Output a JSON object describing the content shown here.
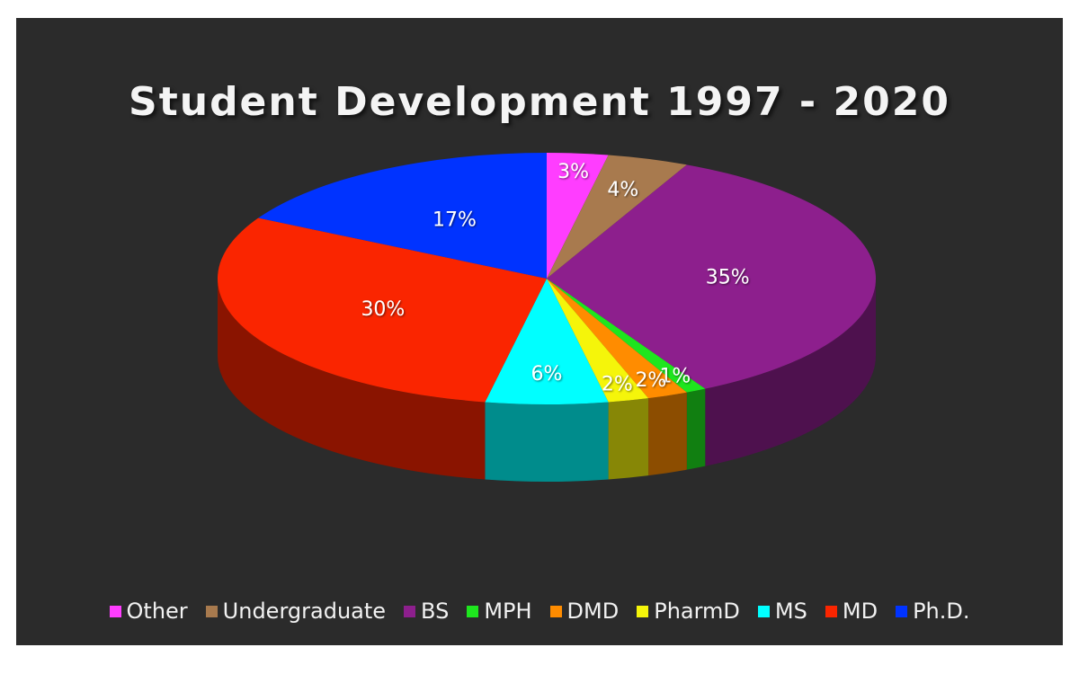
{
  "chart_data": {
    "type": "pie",
    "title": "Student Development 1997 - 2020",
    "legend_position": "bottom",
    "slices": [
      {
        "name": "Other",
        "value": 3,
        "label": "3%",
        "color": "#ff3dff"
      },
      {
        "name": "Undergraduate",
        "value": 4,
        "label": "4%",
        "color": "#a87a4e"
      },
      {
        "name": "BS",
        "value": 35,
        "label": "35%",
        "color": "#8d1f8d"
      },
      {
        "name": "MPH",
        "value": 1,
        "label": "1%",
        "color": "#1ee61e"
      },
      {
        "name": "DMD",
        "value": 2,
        "label": "2%",
        "color": "#ff8c00"
      },
      {
        "name": "PharmD",
        "value": 2,
        "label": "2%",
        "color": "#f5f50a"
      },
      {
        "name": "MS",
        "value": 6,
        "label": "6%",
        "color": "#00ffff"
      },
      {
        "name": "MD",
        "value": 30,
        "label": "30%",
        "color": "#fa2500"
      },
      {
        "name": "Ph.D.",
        "value": 17,
        "label": "17%",
        "color": "#0033ff"
      }
    ]
  }
}
